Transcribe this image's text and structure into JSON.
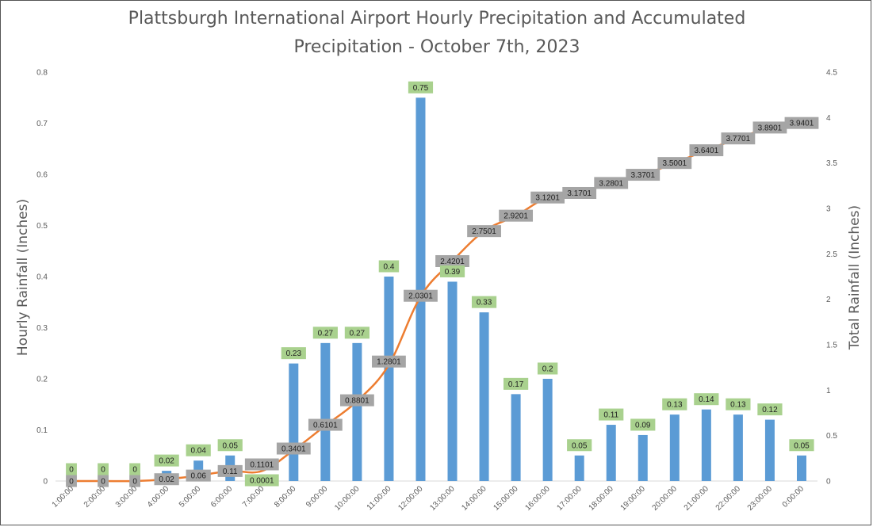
{
  "chart_data": {
    "type": "bar",
    "title_line1": "Plattsburgh International Airport Hourly Precipitation and Accumulated",
    "title_line2": "Precipitation - October 7th, 2023",
    "ylabel": "Hourly Rainfall (Inches)",
    "y2label": "Total Rainfall (Inches)",
    "ylim": [
      0,
      0.8
    ],
    "y2lim": [
      0,
      4.5
    ],
    "yticks": [
      "0",
      "0.1",
      "0.2",
      "0.3",
      "0.4",
      "0.5",
      "0.6",
      "0.7",
      "0.8"
    ],
    "y2ticks": [
      "0",
      "0.5",
      "1",
      "1.5",
      "2",
      "2.5",
      "3",
      "3.5",
      "4",
      "4.5"
    ],
    "categories": [
      "1:00:00",
      "2:00:00",
      "3:00:00",
      "4:00:00",
      "5:00:00",
      "6:00:00",
      "7:00:00",
      "8:00:00",
      "9:00:00",
      "10:00:00",
      "11:00:00",
      "12:00:00",
      "13:00:00",
      "14:00:00",
      "15:00:00",
      "16:00:00",
      "17:00:00",
      "18:00:00",
      "19:00:00",
      "20:00:00",
      "21:00:00",
      "22:00:00",
      "23:00:00",
      "0:00:00"
    ],
    "series": [
      {
        "type": "bar",
        "axis": "left",
        "color": "#5B9BD5",
        "label_bg": "#A9D18E",
        "values": [
          0,
          0,
          0,
          0.02,
          0.04,
          0.05,
          0.0001,
          0.23,
          0.27,
          0.27,
          0.4,
          0.75,
          0.39,
          0.33,
          0.17,
          0.2,
          0.05,
          0.11,
          0.09,
          0.13,
          0.14,
          0.13,
          0.12,
          0.05
        ],
        "labels": [
          "0",
          "0",
          "0",
          "0.02",
          "0.04",
          "0.05",
          "0.0001",
          "0.23",
          "0.27",
          "0.27",
          "0.4",
          "0.75",
          "0.39",
          "0.33",
          "0.17",
          "0.2",
          "0.05",
          "0.11",
          "0.09",
          "0.13",
          "0.14",
          "0.13",
          "0.12",
          "0.05"
        ]
      },
      {
        "type": "line",
        "axis": "right",
        "color": "#ED7D31",
        "label_bg": "#A5A5A5",
        "values": [
          0,
          0,
          0,
          0.02,
          0.06,
          0.11,
          0.1101,
          0.3401,
          0.6101,
          0.8801,
          1.2801,
          2.0301,
          2.4201,
          2.7501,
          2.9201,
          3.1201,
          3.1701,
          3.2801,
          3.3701,
          3.5001,
          3.6401,
          3.7701,
          3.8901,
          3.9401
        ],
        "labels": [
          "0",
          "0",
          "0",
          "0.02",
          "0.06",
          "0.11",
          "0.1101",
          "0.3401",
          "0.6101",
          "0.8801",
          "1.2801",
          "2.0301",
          "2.4201",
          "2.7501",
          "2.9201",
          "3.1201",
          "3.1701",
          "3.2801",
          "3.3701",
          "3.5001",
          "3.6401",
          "3.7701",
          "3.8901",
          "3.9401"
        ]
      }
    ]
  }
}
